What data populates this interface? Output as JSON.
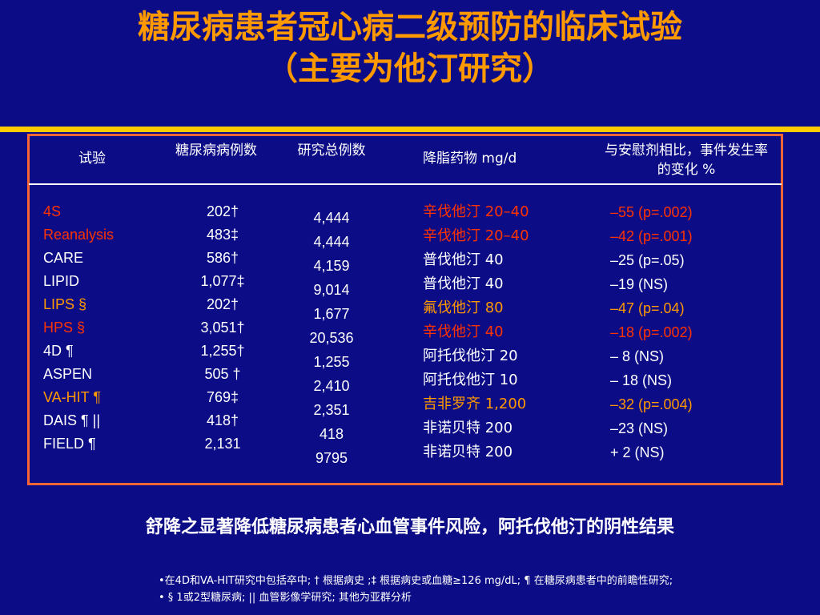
{
  "title": {
    "line1": "糖尿病患者冠心病二级预防的临床试验",
    "line2": "（主要为他汀研究）"
  },
  "colors": {
    "background": "#0c0c86",
    "accent": "#ff9900",
    "highlight": "#ff3300",
    "rule": "#ffcc00",
    "border": "#ff6633"
  },
  "table": {
    "headers": {
      "trial": "试验",
      "diabetic_cases": "糖尿病病例数",
      "total_cases": "研究总例数",
      "drug": "降脂药物 mg/d",
      "change": "与安慰剂相比，事件发生率的变化 %"
    },
    "rows": [
      {
        "trial": "4S",
        "diabetic": "202†",
        "total": "4,444",
        "drug": "辛伐他汀 20–40",
        "change": "–55 (p=.002)",
        "color": "#ff3300"
      },
      {
        "trial": "Reanalysis",
        "diabetic": "483‡",
        "total": "4,444",
        "drug": "辛伐他汀 20–40",
        "change": "–42 (p=.001)",
        "color": "#ff3300"
      },
      {
        "trial": "CARE",
        "diabetic": "586†",
        "total": "4,159",
        "drug": "普伐他汀 40",
        "change": "–25 (p=.05)",
        "color": "#ffffff"
      },
      {
        "trial": "LIPID",
        "diabetic": "1,077‡",
        "total": "9,014",
        "drug": "普伐他汀 40",
        "change": "–19 (NS)",
        "color": "#ffffff"
      },
      {
        "trial": "LIPS §",
        "diabetic": "202†",
        "total": "1,677",
        "drug": "氟伐他汀 80",
        "change": "–47 (p=.04)",
        "color": "#ff9900"
      },
      {
        "trial": "HPS §",
        "diabetic": "3,051†",
        "total": "20,536",
        "drug": "辛伐他汀 40",
        "change": "–18 (p=.002)",
        "color": "#ff3300"
      },
      {
        "trial": "4D ¶",
        "diabetic": "1,255†",
        "total": "1,255",
        "drug": "阿托伐他汀 20",
        "change": "– 8 (NS)",
        "color": "#ffffff"
      },
      {
        "trial": "ASPEN",
        "diabetic": "505 †",
        "total": "2,410",
        "drug": "阿托伐他汀 10",
        "change": "– 18 (NS)",
        "color": "#ffffff"
      },
      {
        "trial": "VA-HIT ¶",
        "diabetic": "769‡",
        "total": "2,351",
        "drug": "吉非罗齐 1,200",
        "change": "–32 (p=.004)",
        "color": "#ff9900"
      },
      {
        "trial": "DAIS ¶ ||",
        "diabetic": "418†",
        "total": "418",
        "drug": "非诺贝特   200",
        "change": "–23 (NS)",
        "color": "#ffffff"
      },
      {
        "trial": "FIELD ¶",
        "diabetic": "2,131",
        "total": "9795",
        "drug": "非诺贝特   200",
        "change": "+ 2  (NS)",
        "color": "#ffffff"
      }
    ]
  },
  "summary": "舒降之显著降低糖尿病患者心血管事件风险，阿托伐他汀的阴性结果",
  "footnotes": [
    "•在4D和VA-HIT研究中包括卒中; † 根据病史 ;‡ 根据病史或血糖≥126 mg/dL; ¶ 在糖尿病患者中的前瞻性研究;",
    "• §  1或2型糖尿病; || 血管影像学研究; 其他为亚群分析"
  ]
}
